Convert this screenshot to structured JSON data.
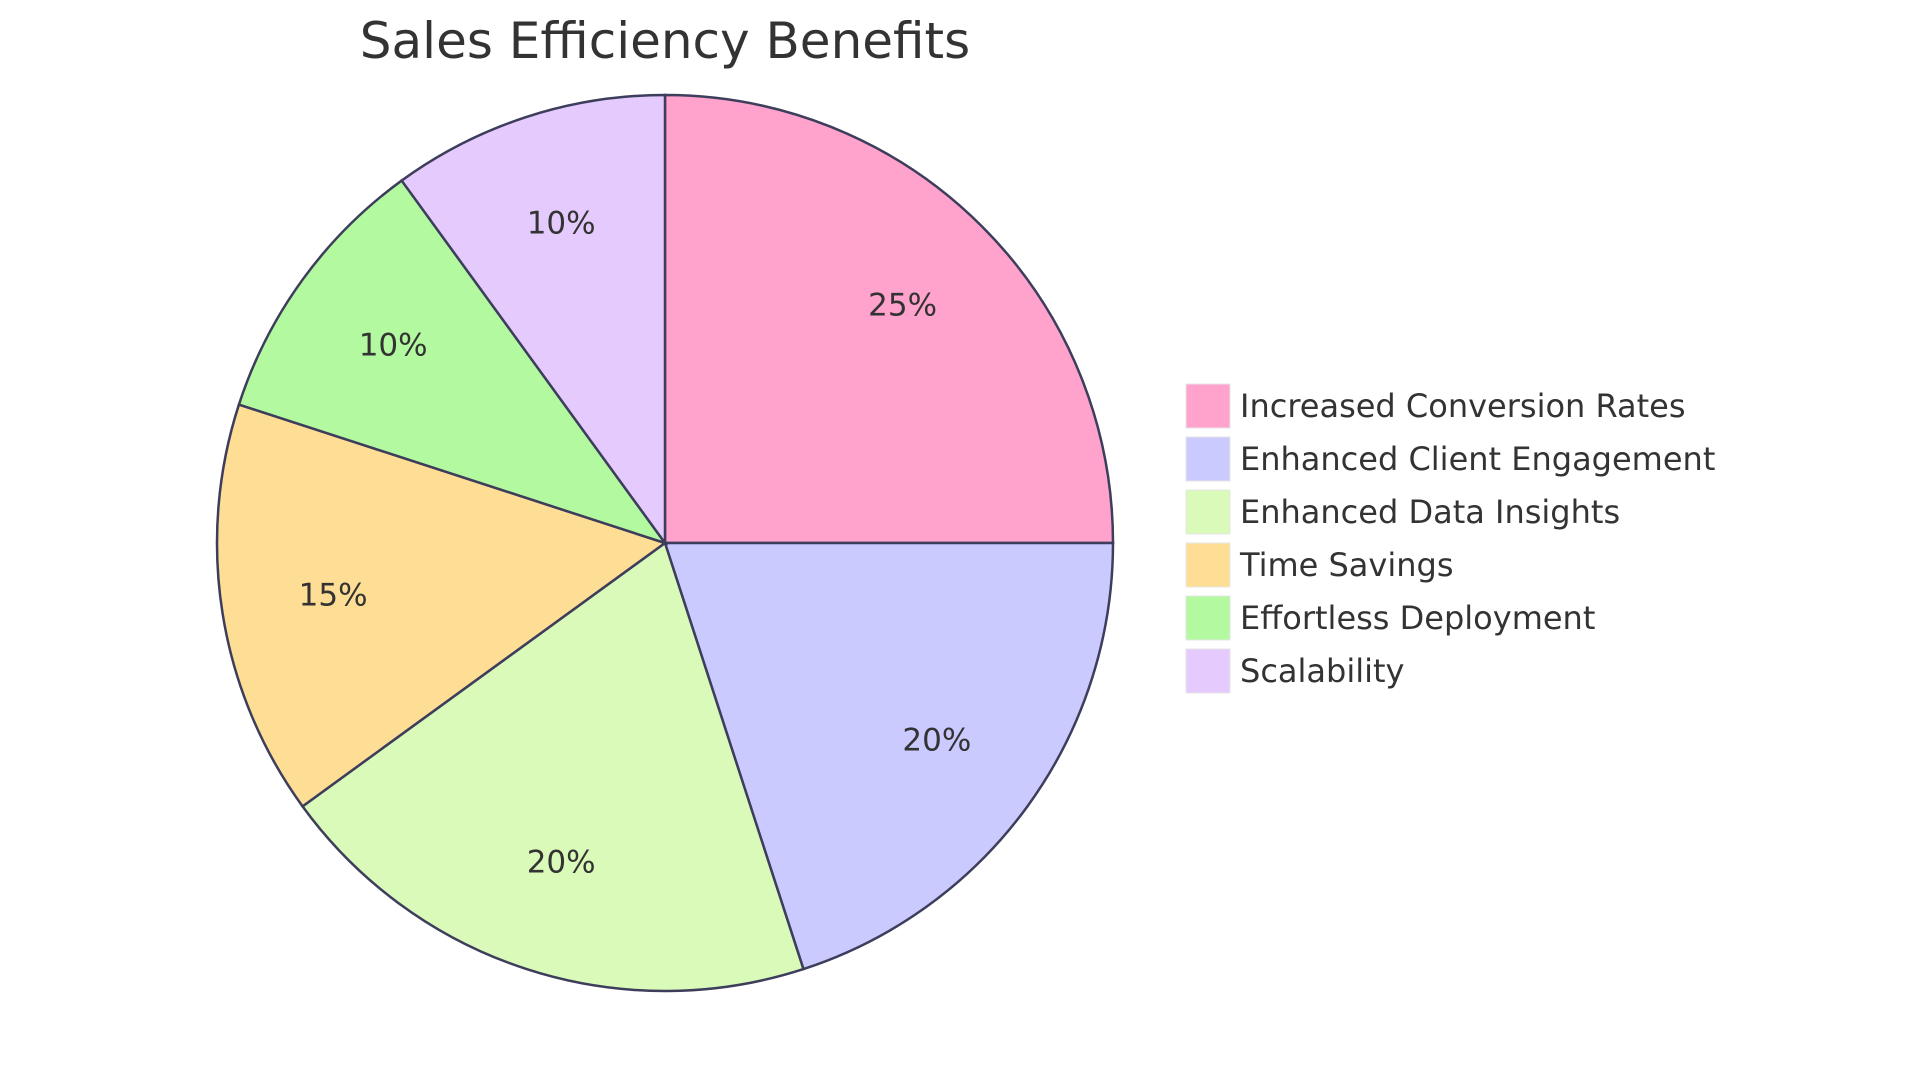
{
  "chart_data": {
    "type": "pie",
    "title": "Sales Efficiency Benefits",
    "slices": [
      {
        "label": "Increased Conversion Rates",
        "value": 25,
        "value_label": "25%",
        "color": "#ffa3cd"
      },
      {
        "label": "Enhanced Client Engagement",
        "value": 20,
        "value_label": "20%",
        "color": "#cacaff"
      },
      {
        "label": "Enhanced Data Insights",
        "value": 20,
        "value_label": "20%",
        "color": "#dafab9"
      },
      {
        "label": "Time Savings",
        "value": 15,
        "value_label": "15%",
        "color": "#fedd94"
      },
      {
        "label": "Effortless Deployment",
        "value": 10,
        "value_label": "10%",
        "color": "#b3f9a0"
      },
      {
        "label": "Scalability",
        "value": 10,
        "value_label": "10%",
        "color": "#e5cafe"
      }
    ],
    "legend_position": "right"
  }
}
